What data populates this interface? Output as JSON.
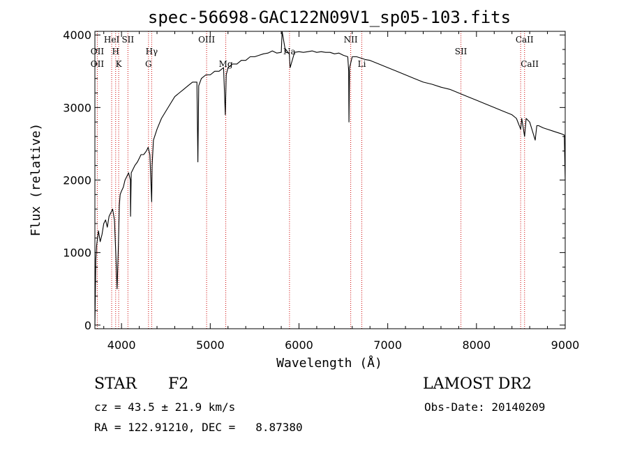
{
  "chart_data": {
    "type": "line",
    "title": "spec-56698-GAC122N09V1_sp05-103.fits",
    "xlabel": "Wavelength (Å)",
    "ylabel": "Flux (relative)",
    "xlim": [
      3700,
      9000
    ],
    "ylim": [
      -50,
      4050
    ],
    "xticks": [
      4000,
      5000,
      6000,
      7000,
      8000,
      9000
    ],
    "yticks": [
      0,
      1000,
      2000,
      3000,
      4000
    ],
    "grid": false,
    "series": [
      {
        "color": "#000000",
        "x": [
          3700,
          3710,
          3720,
          3740,
          3760,
          3780,
          3800,
          3820,
          3840,
          3860,
          3880,
          3900,
          3920,
          3935,
          3950,
          3965,
          3975,
          3985,
          4000,
          4020,
          4040,
          4060,
          4080,
          4100,
          4102,
          4110,
          4130,
          4150,
          4180,
          4200,
          4220,
          4250,
          4280,
          4300,
          4320,
          4340,
          4345,
          4360,
          4400,
          4450,
          4500,
          4550,
          4600,
          4650,
          4700,
          4750,
          4800,
          4850,
          4861,
          4870,
          4900,
          4950,
          5000,
          5050,
          5100,
          5150,
          5170,
          5180,
          5200,
          5250,
          5300,
          5350,
          5400,
          5450,
          5500,
          5550,
          5600,
          5650,
          5700,
          5750,
          5800,
          5810,
          5850,
          5890,
          5900,
          5950,
          6000,
          6050,
          6100,
          6150,
          6200,
          6250,
          6300,
          6350,
          6400,
          6450,
          6500,
          6550,
          6560,
          6563,
          6570,
          6600,
          6650,
          6700,
          6750,
          6800,
          6900,
          7000,
          7100,
          7200,
          7300,
          7400,
          7500,
          7600,
          7700,
          7800,
          7900,
          8000,
          8100,
          8200,
          8300,
          8400,
          8450,
          8498,
          8510,
          8542,
          8560,
          8600,
          8662,
          8680,
          8700,
          8750,
          8800,
          8850,
          8900,
          8950,
          8990,
          9000
        ],
        "y": [
          0,
          900,
          1100,
          1300,
          1150,
          1250,
          1400,
          1450,
          1350,
          1500,
          1550,
          1600,
          1450,
          1000,
          500,
          1100,
          1650,
          1800,
          1850,
          1900,
          2000,
          2050,
          2100,
          2000,
          1500,
          2100,
          2150,
          2200,
          2250,
          2300,
          2350,
          2350,
          2400,
          2450,
          2350,
          1700,
          2200,
          2550,
          2700,
          2850,
          2950,
          3050,
          3150,
          3200,
          3250,
          3300,
          3350,
          3350,
          2250,
          3300,
          3400,
          3450,
          3450,
          3500,
          3500,
          3550,
          2900,
          3450,
          3550,
          3600,
          3600,
          3650,
          3650,
          3700,
          3700,
          3720,
          3740,
          3750,
          3780,
          3750,
          3760,
          4050,
          3760,
          3750,
          3550,
          3760,
          3770,
          3760,
          3770,
          3780,
          3760,
          3770,
          3760,
          3760,
          3740,
          3750,
          3720,
          3700,
          3500,
          2800,
          3550,
          3700,
          3700,
          3680,
          3660,
          3650,
          3600,
          3550,
          3500,
          3450,
          3400,
          3350,
          3320,
          3280,
          3250,
          3200,
          3150,
          3100,
          3050,
          3000,
          2950,
          2900,
          2850,
          2700,
          2850,
          2600,
          2850,
          2800,
          2550,
          2750,
          2750,
          2720,
          2700,
          2680,
          2660,
          2640,
          2620,
          2000
        ]
      }
    ],
    "annotations": [
      {
        "label": "OII",
        "x": 3727,
        "row": 1
      },
      {
        "label": "OII",
        "x": 3727,
        "row": 2
      },
      {
        "label": "HeI",
        "x": 3889,
        "row": 0
      },
      {
        "label": "H",
        "x": 3934,
        "row": 1
      },
      {
        "label": "K",
        "x": 3968,
        "row": 2
      },
      {
        "label": "SII",
        "x": 4072,
        "row": 0
      },
      {
        "label": "Hγ",
        "x": 4340,
        "row": 1
      },
      {
        "label": "G",
        "x": 4304,
        "row": 2
      },
      {
        "label": "OIII",
        "x": 4959,
        "row": 0
      },
      {
        "label": "Mg",
        "x": 5175,
        "row": 2
      },
      {
        "label": "Na",
        "x": 5893,
        "row": 1
      },
      {
        "label": "NII",
        "x": 6583,
        "row": 0
      },
      {
        "label": "Li",
        "x": 6708,
        "row": 2
      },
      {
        "label": "SII",
        "x": 7825,
        "row": 1
      },
      {
        "label": "CaII",
        "x": 8542,
        "row": 0
      },
      {
        "label": "CaII",
        "x": 8600,
        "row": 2
      }
    ],
    "line_markers": [
      3727,
      3889,
      3934,
      3968,
      4072,
      4304,
      4340,
      4959,
      5175,
      5893,
      6583,
      6708,
      7825,
      8498,
      8542
    ],
    "marker_color": "#cc0000"
  },
  "info": {
    "object_class": "STAR",
    "subclass": "F2",
    "cz": "cz = 43.5 ± 21.9 km/s",
    "coords": "RA = 122.91210, DEC =   8.87380",
    "survey": "LAMOST DR2",
    "obs_date": "Obs-Date: 20140209"
  }
}
